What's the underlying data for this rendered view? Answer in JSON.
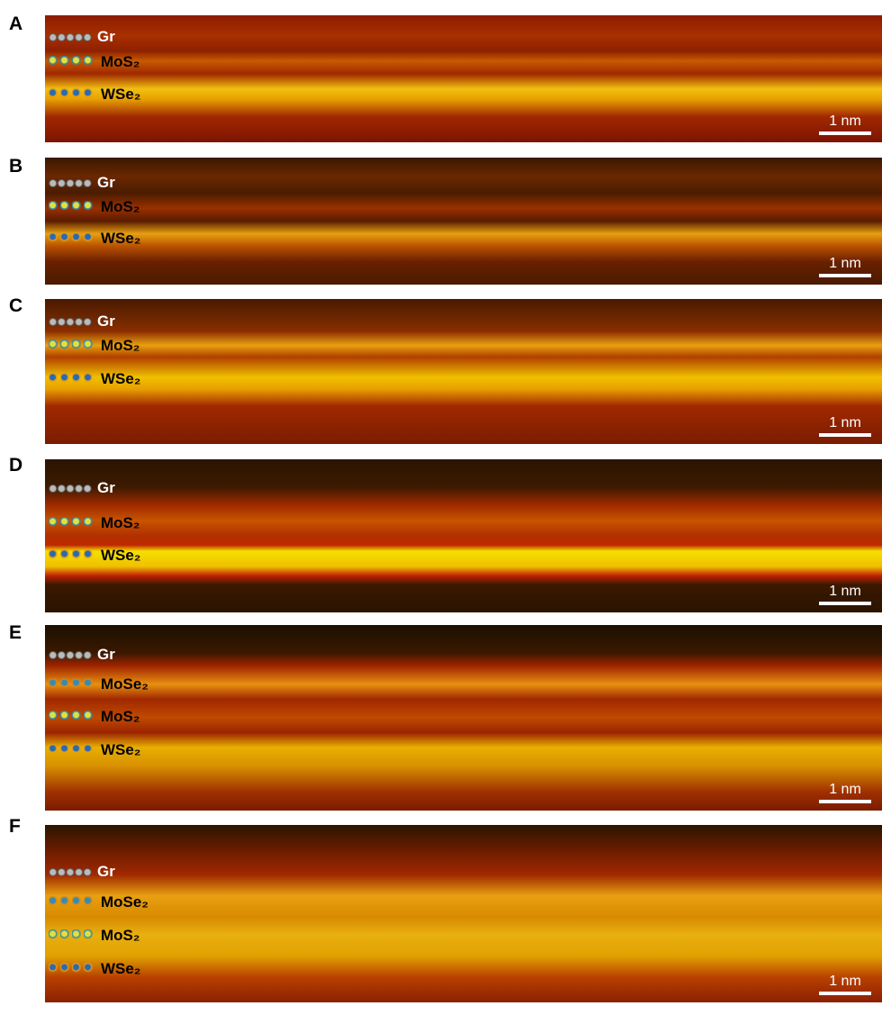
{
  "panels": [
    {
      "letter": "A",
      "layers": [
        "Gr",
        "MoS₂",
        "WSe₂"
      ],
      "scale_bar": "1 nm"
    },
    {
      "letter": "B",
      "layers": [
        "Gr",
        "MoS₂",
        "WSe₂"
      ],
      "scale_bar": "1 nm"
    },
    {
      "letter": "C",
      "layers": [
        "Gr",
        "MoS₂",
        "WSe₂"
      ],
      "scale_bar": "1 nm"
    },
    {
      "letter": "D",
      "layers": [
        "Gr",
        "MoS₂",
        "WSe₂"
      ],
      "scale_bar": "1 nm"
    },
    {
      "letter": "E",
      "layers": [
        "Gr",
        "MoSe₂",
        "MoS₂",
        "WSe₂"
      ],
      "scale_bar": "1 nm"
    },
    {
      "letter": "F",
      "layers": [
        "Gr",
        "MoSe₂",
        "MoS₂",
        "WSe₂"
      ],
      "scale_bar": "1 nm"
    }
  ]
}
